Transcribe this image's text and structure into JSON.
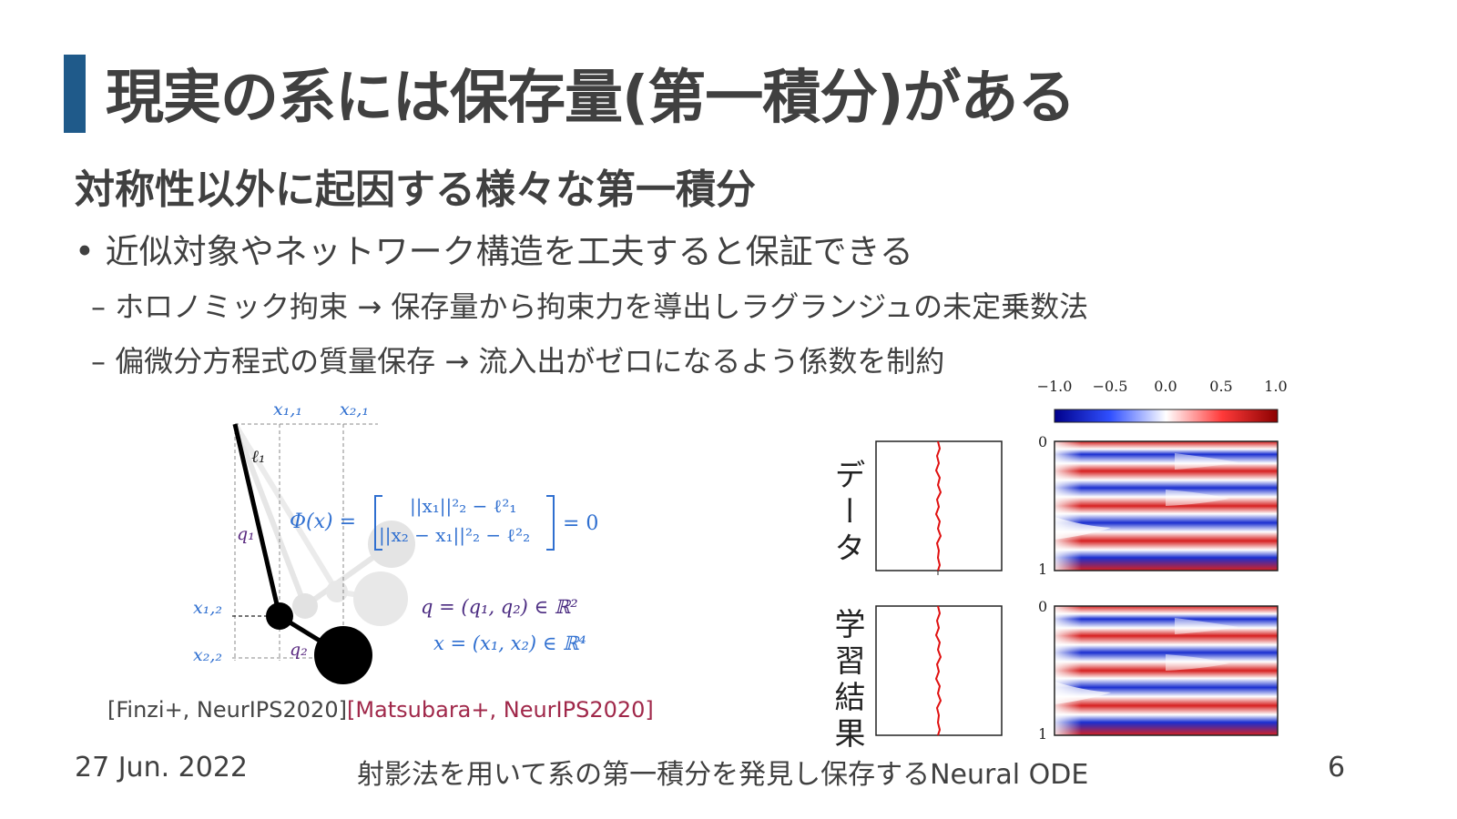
{
  "title": "現実の系には保存量(第一積分)がある",
  "subtitle": "対称性以外に起因する様々な第一積分",
  "bullet": "• 近似対象やネットワーク構造を工夫すると保証できる",
  "subbullets": [
    "– ホロノミック拘束 → 保存量から拘束力を導出しラグランジュの未定乗数法",
    "– 偏微分方程式の質量保存 → 流入出がゼロになるよう係数を制約"
  ],
  "pendulum": {
    "x11": "x₁,₁",
    "x21": "x₂,₁",
    "x12": "x₁,₂",
    "x22": "x₂,₂",
    "l1": "ℓ₁",
    "q1": "q₁",
    "q2": "q₂",
    "phi_lhs": "Φ(x) =",
    "phi_row1": "||x₁||²₂ − ℓ²₁",
    "phi_row2": "||x₂ − x₁||²₂ − ℓ²₂",
    "phi_rhs": "= 0",
    "q_def": "q = (q₁, q₂) ∈ ℝ²",
    "x_def": "x = (x₁, x₂) ∈ ℝ⁴"
  },
  "citation": {
    "first": "[Finzi+, NeurIPS2020]",
    "second": "[Matsubara+, NeurIPS2020]"
  },
  "figure": {
    "colorbar_ticks": [
      "−1.0",
      "−0.5",
      "0.0",
      "0.5",
      "1.0"
    ],
    "row_labels": [
      "データ",
      "学習結果"
    ],
    "y_top": "0",
    "y_bottom": "1"
  },
  "footer": {
    "date": "27 Jun. 2022",
    "center": "射影法を用いて系の第一積分を発見し保存するNeural ODE",
    "page": "6"
  },
  "colors": {
    "accent": "#1f5a8a",
    "blue_text": "#2f6fd0",
    "citation_red": "#a0284a"
  }
}
